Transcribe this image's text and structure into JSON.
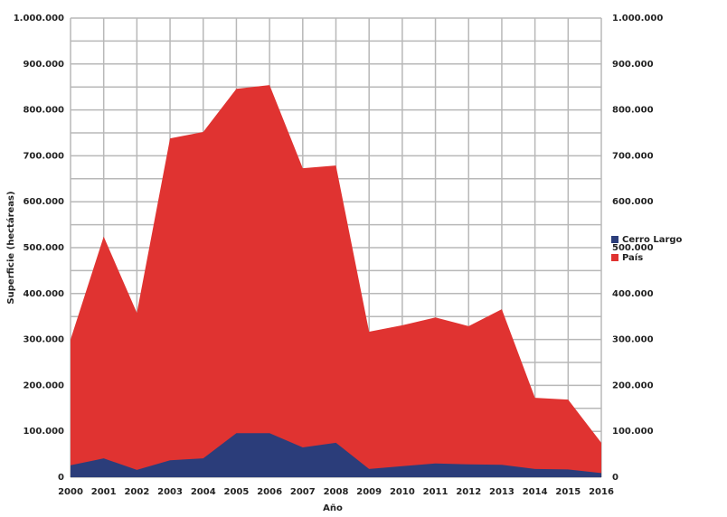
{
  "chart_data": {
    "type": "area",
    "x_label": "Año",
    "y_label": "Superficie (hectáreas)",
    "x": [
      2000,
      2001,
      2002,
      2003,
      2004,
      2005,
      2006,
      2007,
      2008,
      2009,
      2010,
      2011,
      2012,
      2013,
      2014,
      2015,
      2016
    ],
    "xlim": [
      2000,
      2016
    ],
    "series": [
      {
        "name": "Cerro Largo",
        "color": "#2b3d7a",
        "values": [
          26000,
          41000,
          16000,
          37000,
          41000,
          96000,
          96000,
          65000,
          75000,
          18000,
          24000,
          30000,
          28000,
          27000,
          18000,
          17000,
          9000
        ]
      },
      {
        "name": "País",
        "color": "#e03331",
        "values": [
          300000,
          524000,
          358000,
          738000,
          752000,
          846000,
          854000,
          673000,
          679000,
          317000,
          331000,
          348000,
          329000,
          366000,
          173000,
          169000,
          75000
        ]
      }
    ],
    "ylim": [
      0,
      1000000
    ],
    "yticks": [
      0,
      {
        "value": 100000,
        "label": "100.000"
      },
      {
        "value": 200000,
        "label": "200.000"
      },
      {
        "value": 300000,
        "label": "300.000"
      },
      {
        "value": 400000,
        "label": "400.000"
      },
      {
        "value": 500000,
        "label": "500.000"
      },
      {
        "value": 600000,
        "label": "600.000"
      },
      {
        "value": 700000,
        "label": "700.000"
      },
      {
        "value": 800000,
        "label": "800.000"
      },
      {
        "value": 900000,
        "label": "900.000"
      },
      {
        "value": 1000000,
        "label": "1.000.000"
      }
    ],
    "y_minor_ticks": [
      50000,
      150000,
      250000,
      350000,
      450000,
      550000,
      650000,
      750000,
      850000,
      950000
    ],
    "y2lim": [
      0,
      1000000
    ],
    "y2ticks": [
      0,
      {
        "value": 100000,
        "label": "100.000"
      },
      {
        "value": 200000,
        "label": "200.000"
      },
      {
        "value": 300000,
        "label": "300.000"
      },
      {
        "value": 400000,
        "label": "400.000"
      },
      {
        "value": 500000,
        "label": "500.000"
      },
      {
        "value": 600000,
        "label": "600.000"
      },
      {
        "value": 700000,
        "label": "700.000"
      },
      {
        "value": 800000,
        "label": "800.000"
      },
      {
        "value": 900000,
        "label": "900.000"
      },
      {
        "value": 1000000,
        "label": "1.000.000"
      }
    ],
    "grid": true,
    "legend": "right"
  }
}
